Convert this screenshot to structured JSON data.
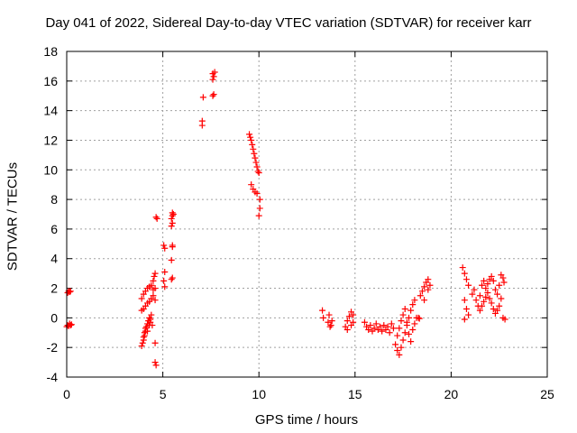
{
  "chart_data": {
    "type": "scatter",
    "title": "Day 041 of 2022, Sidereal Day-to-day VTEC variation (SDTVAR) for receiver karr",
    "xlabel": "GPS time / hours",
    "ylabel": "SDTVAR / TECUs",
    "xlim": [
      0,
      25
    ],
    "ylim": [
      -4,
      18
    ],
    "xticks": [
      0,
      5,
      10,
      15,
      20,
      25
    ],
    "yticks": [
      -4,
      -2,
      0,
      2,
      4,
      6,
      8,
      10,
      12,
      14,
      16,
      18
    ],
    "grid": true,
    "marker": "+",
    "color": "#ff0000",
    "series": [
      {
        "name": "SDTVAR",
        "points": [
          [
            0.0,
            -0.6
          ],
          [
            0.05,
            -0.5
          ],
          [
            0.1,
            -0.55
          ],
          [
            0.15,
            -0.4
          ],
          [
            0.2,
            -0.5
          ],
          [
            0.25,
            -0.45
          ],
          [
            0.05,
            1.7
          ],
          [
            0.1,
            1.8
          ],
          [
            0.15,
            1.75
          ],
          [
            0.2,
            1.8
          ],
          [
            3.9,
            -1.9
          ],
          [
            3.95,
            -1.7
          ],
          [
            4.0,
            -1.5
          ],
          [
            4.05,
            -1.2
          ],
          [
            4.1,
            -0.9
          ],
          [
            4.15,
            -0.6
          ],
          [
            4.2,
            -0.4
          ],
          [
            4.25,
            -0.2
          ],
          [
            4.3,
            0.0
          ],
          [
            4.35,
            -0.3
          ],
          [
            4.0,
            -1.3
          ],
          [
            4.05,
            -1.0
          ],
          [
            4.1,
            -0.7
          ],
          [
            4.2,
            -0.9
          ],
          [
            4.3,
            -0.5
          ],
          [
            4.35,
            -0.1
          ],
          [
            4.4,
            0.2
          ],
          [
            4.45,
            -0.5
          ],
          [
            3.9,
            0.5
          ],
          [
            4.0,
            0.6
          ],
          [
            4.1,
            0.8
          ],
          [
            4.2,
            1.0
          ],
          [
            4.3,
            1.1
          ],
          [
            4.4,
            1.3
          ],
          [
            4.5,
            1.5
          ],
          [
            3.9,
            1.3
          ],
          [
            4.0,
            1.6
          ],
          [
            4.1,
            1.8
          ],
          [
            4.2,
            2.0
          ],
          [
            4.3,
            2.1
          ],
          [
            4.4,
            2.2
          ],
          [
            4.5,
            1.9
          ],
          [
            4.6,
            2.0
          ],
          [
            4.5,
            2.5
          ],
          [
            4.55,
            2.8
          ],
          [
            4.6,
            3.0
          ],
          [
            4.6,
            1.2
          ],
          [
            4.6,
            -1.7
          ],
          [
            4.6,
            -3.0
          ],
          [
            4.65,
            -3.2
          ],
          [
            4.7,
            6.7
          ],
          [
            4.65,
            6.8
          ],
          [
            5.05,
            2.5
          ],
          [
            5.1,
            3.1
          ],
          [
            5.1,
            4.7
          ],
          [
            5.05,
            4.9
          ],
          [
            5.1,
            2.1
          ],
          [
            5.45,
            2.6
          ],
          [
            5.5,
            2.7
          ],
          [
            5.45,
            3.9
          ],
          [
            5.5,
            4.8
          ],
          [
            5.5,
            4.9
          ],
          [
            5.45,
            6.2
          ],
          [
            5.5,
            6.4
          ],
          [
            5.45,
            6.7
          ],
          [
            5.5,
            6.9
          ],
          [
            5.55,
            7.0
          ],
          [
            5.5,
            7.1
          ],
          [
            7.05,
            13.0
          ],
          [
            7.05,
            13.3
          ],
          [
            7.1,
            14.9
          ],
          [
            7.6,
            15.0
          ],
          [
            7.65,
            15.1
          ],
          [
            7.6,
            16.1
          ],
          [
            7.65,
            16.3
          ],
          [
            7.6,
            16.5
          ],
          [
            7.7,
            16.6
          ],
          [
            9.5,
            12.4
          ],
          [
            9.55,
            12.2
          ],
          [
            9.6,
            12.0
          ],
          [
            9.65,
            11.7
          ],
          [
            9.7,
            11.4
          ],
          [
            9.75,
            11.1
          ],
          [
            9.8,
            10.8
          ],
          [
            9.85,
            10.5
          ],
          [
            9.9,
            10.2
          ],
          [
            9.95,
            9.9
          ],
          [
            10.0,
            9.8
          ],
          [
            9.6,
            9.0
          ],
          [
            9.7,
            8.7
          ],
          [
            9.8,
            8.5
          ],
          [
            9.9,
            8.4
          ],
          [
            10.05,
            8.0
          ],
          [
            10.05,
            7.4
          ],
          [
            10.0,
            6.9
          ],
          [
            13.3,
            0.5
          ],
          [
            13.35,
            0.0
          ],
          [
            13.6,
            -0.3
          ],
          [
            13.7,
            -0.6
          ],
          [
            13.8,
            -0.2
          ],
          [
            13.65,
            0.2
          ],
          [
            13.75,
            -0.5
          ],
          [
            14.5,
            -0.6
          ],
          [
            14.6,
            -0.2
          ],
          [
            14.7,
            0.1
          ],
          [
            14.8,
            0.4
          ],
          [
            14.9,
            0.2
          ],
          [
            14.6,
            -0.8
          ],
          [
            14.8,
            -0.5
          ],
          [
            14.9,
            -0.3
          ],
          [
            15.5,
            -0.3
          ],
          [
            15.6,
            -0.6
          ],
          [
            15.7,
            -0.8
          ],
          [
            15.8,
            -0.5
          ],
          [
            15.9,
            -0.9
          ],
          [
            16.0,
            -0.7
          ],
          [
            16.1,
            -0.4
          ],
          [
            16.2,
            -0.8
          ],
          [
            16.3,
            -0.6
          ],
          [
            16.4,
            -0.9
          ],
          [
            16.5,
            -0.5
          ],
          [
            16.6,
            -0.8
          ],
          [
            16.7,
            -0.6
          ],
          [
            16.8,
            -1.0
          ],
          [
            16.9,
            -0.4
          ],
          [
            17.0,
            -0.7
          ],
          [
            17.1,
            -1.8
          ],
          [
            17.2,
            -2.2
          ],
          [
            17.3,
            -2.5
          ],
          [
            17.4,
            -2.0
          ],
          [
            17.5,
            -1.5
          ],
          [
            17.6,
            -1.0
          ],
          [
            17.7,
            -0.5
          ],
          [
            17.8,
            0.0
          ],
          [
            17.9,
            0.5
          ],
          [
            18.0,
            0.9
          ],
          [
            18.1,
            1.2
          ],
          [
            17.2,
            -1.2
          ],
          [
            17.3,
            -0.7
          ],
          [
            17.4,
            -0.2
          ],
          [
            17.5,
            0.2
          ],
          [
            17.6,
            0.6
          ],
          [
            17.7,
            -0.3
          ],
          [
            17.8,
            -1.1
          ],
          [
            17.9,
            -1.6
          ],
          [
            18.0,
            -0.8
          ],
          [
            18.1,
            -0.4
          ],
          [
            18.4,
            1.5
          ],
          [
            18.5,
            1.8
          ],
          [
            18.6,
            2.1
          ],
          [
            18.7,
            2.4
          ],
          [
            18.8,
            2.6
          ],
          [
            18.9,
            2.2
          ],
          [
            18.6,
            1.2
          ],
          [
            18.8,
            1.9
          ],
          [
            18.2,
            0.0
          ],
          [
            18.3,
            0.0
          ],
          [
            18.35,
            -0.05
          ],
          [
            20.6,
            3.4
          ],
          [
            20.7,
            3.0
          ],
          [
            20.8,
            2.6
          ],
          [
            20.9,
            2.2
          ],
          [
            20.7,
            1.2
          ],
          [
            20.8,
            0.6
          ],
          [
            20.9,
            0.2
          ],
          [
            20.7,
            -0.1
          ],
          [
            21.1,
            1.6
          ],
          [
            21.2,
            1.9
          ],
          [
            21.3,
            1.2
          ],
          [
            21.4,
            0.8
          ],
          [
            21.5,
            1.5
          ],
          [
            21.6,
            2.2
          ],
          [
            21.7,
            2.5
          ],
          [
            21.8,
            2.0
          ],
          [
            21.9,
            1.7
          ],
          [
            22.0,
            1.3
          ],
          [
            22.1,
            1.0
          ],
          [
            21.5,
            0.5
          ],
          [
            21.6,
            0.8
          ],
          [
            21.7,
            1.1
          ],
          [
            21.8,
            1.4
          ],
          [
            21.9,
            2.3
          ],
          [
            22.0,
            2.6
          ],
          [
            22.1,
            2.8
          ],
          [
            22.2,
            2.5
          ],
          [
            22.3,
            1.9
          ],
          [
            22.4,
            1.6
          ],
          [
            22.5,
            2.2
          ],
          [
            22.2,
            0.6
          ],
          [
            22.3,
            0.3
          ],
          [
            22.4,
            0.5
          ],
          [
            22.5,
            0.8
          ],
          [
            22.6,
            2.9
          ],
          [
            22.7,
            2.7
          ],
          [
            22.75,
            2.4
          ],
          [
            22.6,
            1.3
          ],
          [
            22.7,
            0.0
          ],
          [
            22.8,
            -0.1
          ]
        ]
      }
    ]
  }
}
